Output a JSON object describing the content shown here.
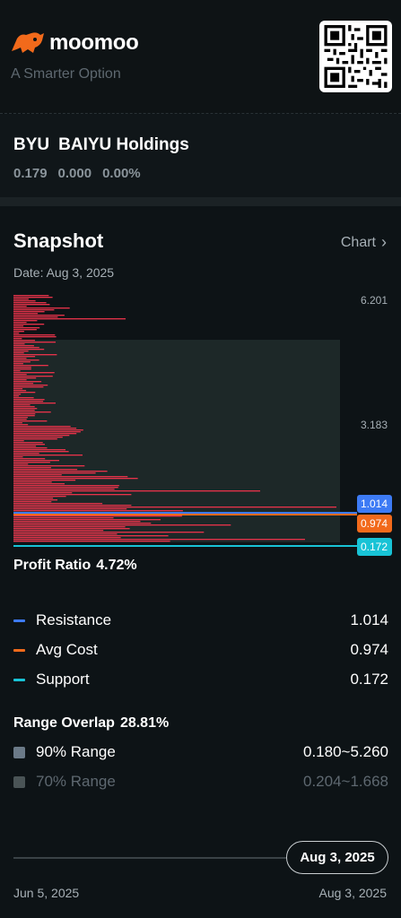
{
  "brand": {
    "name": "moomoo",
    "tagline": "A Smarter Option",
    "icon": "bull-logo-icon"
  },
  "quote": {
    "symbol": "BYU",
    "name": "BAIYU Holdings",
    "price": "0.179",
    "change": "0.000",
    "change_pct": "0.00%"
  },
  "snapshot": {
    "title": "Snapshot",
    "chart_link": "Chart",
    "date_label": "Date: Aug 3, 2025",
    "price_max": "6.201",
    "price_mid": "3.183",
    "markers": {
      "resistance": "1.014",
      "avg_cost": "0.974",
      "support": "0.172"
    },
    "colors": {
      "resistance": "#3d7bf5",
      "avg_cost": "#f26a1b",
      "support": "#18c3d6",
      "bars": "#e8334a",
      "range_band": "#1f2a2a"
    }
  },
  "profit": {
    "label": "Profit Ratio",
    "value": "4.72%",
    "items": [
      {
        "label": "Resistance",
        "value": "1.014",
        "color": "#3d7bf5"
      },
      {
        "label": "Avg Cost",
        "value": "0.974",
        "color": "#f26a1b"
      },
      {
        "label": "Support",
        "value": "0.172",
        "color": "#18c3d6"
      }
    ]
  },
  "range": {
    "label": "Range Overlap",
    "value": "28.81%",
    "items": [
      {
        "label": "90% Range",
        "value": "0.180~5.260",
        "color": "#6b7a88"
      },
      {
        "label": "70% Range",
        "value": "0.204~1.668",
        "color": "#4a5456"
      }
    ]
  },
  "timeline": {
    "selected": "Aug 3, 2025",
    "start": "Jun 5, 2025",
    "end": "Aug 3, 2025"
  }
}
